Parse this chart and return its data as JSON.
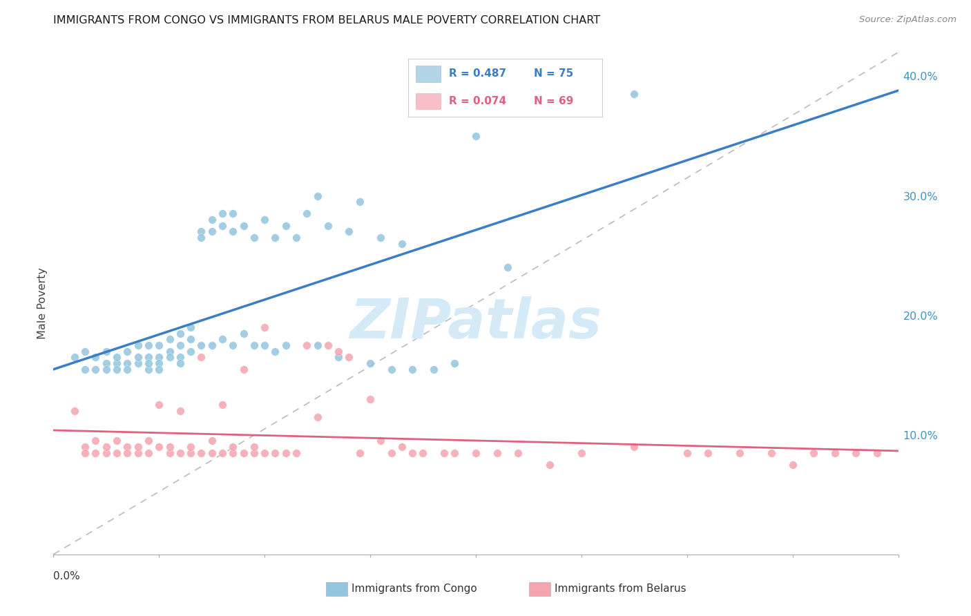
{
  "title": "IMMIGRANTS FROM CONGO VS IMMIGRANTS FROM BELARUS MALE POVERTY CORRELATION CHART",
  "source": "Source: ZipAtlas.com",
  "ylabel": "Male Poverty",
  "right_yticks": [
    "40.0%",
    "30.0%",
    "20.0%",
    "10.0%"
  ],
  "right_ytick_vals": [
    0.4,
    0.3,
    0.2,
    0.1
  ],
  "legend_R_congo": "0.487",
  "legend_N_congo": "75",
  "legend_R_belarus": "0.074",
  "legend_N_belarus": "69",
  "color_congo": "#92c5de",
  "color_belarus": "#f4a5b0",
  "color_trendline_congo": "#3a7ec6",
  "color_trendline_belarus": "#e06080",
  "color_diagonal": "#bbbbbb",
  "color_right_axis": "#4393c3",
  "background_color": "#ffffff",
  "grid_color": "#dddddd",
  "xmin": 0.0,
  "xmax": 0.08,
  "ymin": 0.0,
  "ymax": 0.42,
  "congo_x": [
    0.002,
    0.003,
    0.003,
    0.004,
    0.004,
    0.005,
    0.005,
    0.005,
    0.006,
    0.006,
    0.006,
    0.007,
    0.007,
    0.007,
    0.008,
    0.008,
    0.008,
    0.009,
    0.009,
    0.009,
    0.009,
    0.01,
    0.01,
    0.01,
    0.01,
    0.011,
    0.011,
    0.011,
    0.012,
    0.012,
    0.012,
    0.012,
    0.013,
    0.013,
    0.013,
    0.014,
    0.014,
    0.014,
    0.015,
    0.015,
    0.015,
    0.016,
    0.016,
    0.016,
    0.017,
    0.017,
    0.017,
    0.018,
    0.018,
    0.019,
    0.019,
    0.02,
    0.02,
    0.021,
    0.021,
    0.022,
    0.022,
    0.023,
    0.024,
    0.025,
    0.025,
    0.026,
    0.027,
    0.028,
    0.029,
    0.03,
    0.031,
    0.032,
    0.033,
    0.034,
    0.036,
    0.038,
    0.04,
    0.043,
    0.055
  ],
  "congo_y": [
    0.165,
    0.155,
    0.17,
    0.155,
    0.165,
    0.16,
    0.155,
    0.17,
    0.16,
    0.155,
    0.165,
    0.16,
    0.17,
    0.155,
    0.175,
    0.16,
    0.165,
    0.175,
    0.165,
    0.155,
    0.16,
    0.175,
    0.165,
    0.16,
    0.155,
    0.18,
    0.17,
    0.165,
    0.185,
    0.175,
    0.165,
    0.16,
    0.19,
    0.18,
    0.17,
    0.27,
    0.265,
    0.175,
    0.28,
    0.27,
    0.175,
    0.285,
    0.275,
    0.18,
    0.285,
    0.27,
    0.175,
    0.275,
    0.185,
    0.265,
    0.175,
    0.28,
    0.175,
    0.265,
    0.17,
    0.275,
    0.175,
    0.265,
    0.285,
    0.3,
    0.175,
    0.275,
    0.165,
    0.27,
    0.295,
    0.16,
    0.265,
    0.155,
    0.26,
    0.155,
    0.155,
    0.16,
    0.35,
    0.24,
    0.385
  ],
  "belarus_x": [
    0.002,
    0.003,
    0.003,
    0.004,
    0.004,
    0.005,
    0.005,
    0.006,
    0.006,
    0.007,
    0.007,
    0.008,
    0.008,
    0.009,
    0.009,
    0.01,
    0.01,
    0.011,
    0.011,
    0.012,
    0.012,
    0.013,
    0.013,
    0.014,
    0.014,
    0.015,
    0.015,
    0.016,
    0.016,
    0.017,
    0.017,
    0.018,
    0.018,
    0.019,
    0.019,
    0.02,
    0.02,
    0.021,
    0.022,
    0.023,
    0.024,
    0.025,
    0.026,
    0.027,
    0.028,
    0.029,
    0.03,
    0.031,
    0.032,
    0.033,
    0.034,
    0.035,
    0.037,
    0.038,
    0.04,
    0.042,
    0.044,
    0.047,
    0.05,
    0.055,
    0.06,
    0.062,
    0.065,
    0.068,
    0.07,
    0.072,
    0.074,
    0.076,
    0.078
  ],
  "belarus_y": [
    0.12,
    0.09,
    0.085,
    0.085,
    0.095,
    0.085,
    0.09,
    0.095,
    0.085,
    0.09,
    0.085,
    0.085,
    0.09,
    0.095,
    0.085,
    0.09,
    0.125,
    0.085,
    0.09,
    0.085,
    0.12,
    0.085,
    0.09,
    0.085,
    0.165,
    0.085,
    0.095,
    0.085,
    0.125,
    0.085,
    0.09,
    0.085,
    0.155,
    0.085,
    0.09,
    0.085,
    0.19,
    0.085,
    0.085,
    0.085,
    0.175,
    0.115,
    0.175,
    0.17,
    0.165,
    0.085,
    0.13,
    0.095,
    0.085,
    0.09,
    0.085,
    0.085,
    0.085,
    0.085,
    0.085,
    0.085,
    0.085,
    0.075,
    0.085,
    0.09,
    0.085,
    0.085,
    0.085,
    0.085,
    0.075,
    0.085,
    0.085,
    0.085,
    0.085
  ],
  "watermark_text": "ZIPatlas",
  "watermark_color": "#d4eaf7"
}
